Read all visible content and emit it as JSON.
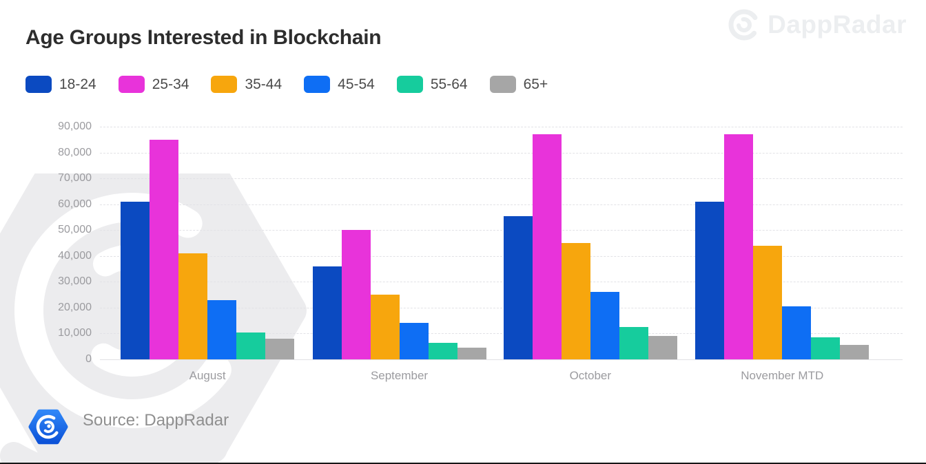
{
  "header": {
    "title": "Age Groups Interested in Blockchain"
  },
  "watermark": {
    "text": "DappRadar"
  },
  "footer": {
    "source_text": "Source: DappRadar"
  },
  "colors": {
    "age_18_24": "#0b4ac1",
    "age_25_34": "#e833da",
    "age_35_44": "#f7a60d",
    "age_45_54": "#0e6ef4",
    "age_55_64": "#16cc9d",
    "age_65_plus": "#a6a6a6",
    "watermark_gray": "#ececee",
    "logo_blue": "#1565f0"
  },
  "chart_data": {
    "type": "bar",
    "title": "Age Groups Interested in Blockchain",
    "categories": [
      "August",
      "September",
      "October",
      "November MTD"
    ],
    "series": [
      {
        "name": "18-24",
        "color": "#0b4ac1",
        "values": [
          61000,
          36000,
          55500,
          61000
        ]
      },
      {
        "name": "25-34",
        "color": "#e833da",
        "values": [
          85000,
          50000,
          87000,
          87000
        ]
      },
      {
        "name": "35-44",
        "color": "#f7a60d",
        "values": [
          41000,
          25000,
          45000,
          44000
        ]
      },
      {
        "name": "45-54",
        "color": "#0e6ef4",
        "values": [
          23000,
          14000,
          26000,
          20500
        ]
      },
      {
        "name": "55-64",
        "color": "#16cc9d",
        "values": [
          10500,
          6500,
          12500,
          8500
        ]
      },
      {
        "name": "65+",
        "color": "#a6a6a6",
        "values": [
          8000,
          4500,
          9000,
          5500
        ]
      }
    ],
    "xlabel": "",
    "ylabel": "",
    "ylim": [
      0,
      90000
    ],
    "ytick_step": 10000,
    "ytick_labels": [
      "0",
      "10,000",
      "20,000",
      "30,000",
      "40,000",
      "50,000",
      "60,000",
      "70,000",
      "80,000",
      "90,000"
    ],
    "grid": "horizontal-dashed",
    "legend_position": "top-left"
  }
}
